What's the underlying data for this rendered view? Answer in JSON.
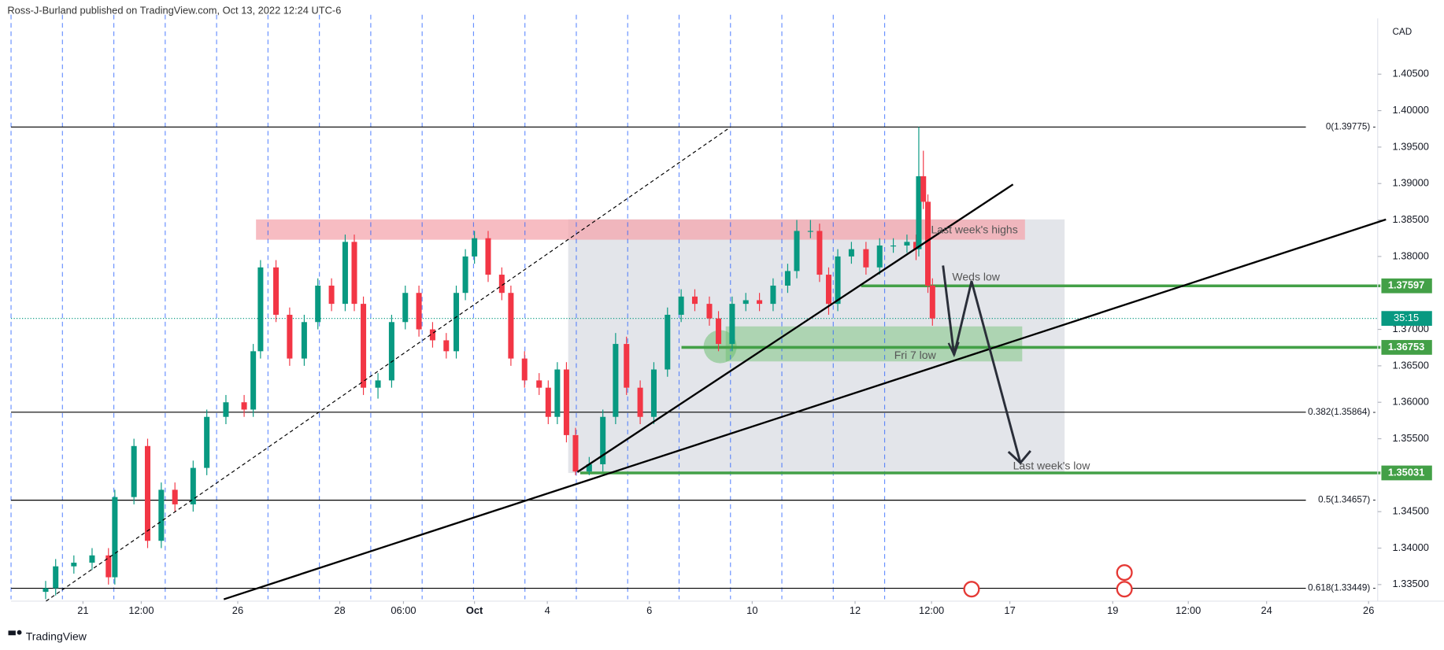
{
  "header": "Ross-J-Burland published on TradingView.com, Oct 13, 2022 12:24 UTC-6",
  "footer": "TradingView",
  "chart_data": {
    "type": "candlestick",
    "currency": "CAD",
    "up_color": "#089981",
    "down_color": "#f23645",
    "grid": false,
    "xlim": [
      0,
      150
    ],
    "ylim": [
      1.33298,
      1.41239
    ],
    "xticks": [
      {
        "value": 7.9,
        "label": "21"
      },
      {
        "value": 14.3,
        "label": "12:00"
      },
      {
        "value": 24.9,
        "label": "26"
      },
      {
        "value": 36.1,
        "label": "28"
      },
      {
        "value": 43.1,
        "label": "06:00"
      },
      {
        "value": 50.9,
        "label": "Oct"
      },
      {
        "value": 58.9,
        "label": "4"
      },
      {
        "value": 70.1,
        "label": "6"
      },
      {
        "value": 81.4,
        "label": "10"
      },
      {
        "value": 92.7,
        "label": "12"
      },
      {
        "value": 101.1,
        "label": "12:00"
      },
      {
        "value": 109.7,
        "label": "17"
      },
      {
        "value": 121.0,
        "label": "19"
      },
      {
        "value": 129.3,
        "label": "12:00"
      },
      {
        "value": 137.9,
        "label": "24"
      },
      {
        "value": 149.1,
        "label": "26"
      }
    ],
    "yticks": [
      {
        "value": 1.405,
        "label": "1.40500"
      },
      {
        "value": 1.4,
        "label": "1.40000"
      },
      {
        "value": 1.395,
        "label": "1.39500"
      },
      {
        "value": 1.39,
        "label": "1.39000"
      },
      {
        "value": 1.385,
        "label": "1.38500"
      },
      {
        "value": 1.38,
        "label": "1.38000"
      },
      {
        "value": 1.37,
        "label": "1.37000"
      },
      {
        "value": 1.365,
        "label": "1.36500"
      },
      {
        "value": 1.36,
        "label": "1.36000"
      },
      {
        "value": 1.355,
        "label": "1.35500"
      },
      {
        "value": 1.345,
        "label": "1.34500"
      },
      {
        "value": 1.34,
        "label": "1.34000"
      },
      {
        "value": 1.335,
        "label": "1.33500"
      }
    ],
    "x": [
      3.8,
      4.9,
      6.9,
      8.9,
      10.7,
      11.4,
      13.5,
      15.0,
      16.5,
      18.0,
      20.0,
      21.5,
      23.6,
      25.6,
      26.6,
      27.4,
      29.1,
      30.6,
      32.2,
      33.7,
      35.2,
      36.7,
      37.7,
      38.7,
      40.3,
      41.8,
      43.3,
      44.8,
      46.3,
      47.8,
      48.9,
      49.9,
      50.9,
      52.4,
      53.9,
      54.9,
      56.4,
      58.0,
      59.0,
      60.0,
      61.0,
      62.0,
      63.5,
      65.0,
      66.4,
      67.6,
      69.1,
      70.6,
      72.1,
      73.6,
      75.1,
      76.7,
      77.7,
      79.2,
      80.7,
      82.2,
      83.7,
      85.3,
      86.3,
      87.8,
      88.8,
      89.8,
      90.8,
      92.3,
      93.9,
      95.4,
      96.9,
      98.4,
      99.4,
      99.7,
      100.2,
      100.7,
      101.2
    ],
    "open": [
      1.334,
      1.3345,
      1.3375,
      1.338,
      1.339,
      1.336,
      1.347,
      1.354,
      1.341,
      1.348,
      1.346,
      1.351,
      1.358,
      1.36,
      1.359,
      1.367,
      1.3785,
      1.372,
      1.366,
      1.371,
      1.376,
      1.3735,
      1.382,
      1.3735,
      1.362,
      1.363,
      1.371,
      1.375,
      1.37,
      1.3685,
      1.367,
      1.375,
      1.38,
      1.3825,
      1.3775,
      1.375,
      1.366,
      1.363,
      1.362,
      1.358,
      1.3645,
      1.3555,
      1.3505,
      1.3515,
      1.358,
      1.368,
      1.362,
      1.358,
      1.3645,
      1.372,
      1.3745,
      1.3735,
      1.3715,
      1.368,
      1.3735,
      1.374,
      1.3735,
      1.376,
      1.378,
      1.3835,
      1.3835,
      1.3775,
      1.3735,
      1.38,
      1.381,
      1.3785,
      1.3815,
      1.3815,
      1.382,
      1.381,
      1.391,
      1.3875,
      1.376
    ],
    "high": [
      1.3355,
      1.3385,
      1.339,
      1.34,
      1.34,
      1.348,
      1.355,
      1.355,
      1.349,
      1.349,
      1.352,
      1.359,
      1.361,
      1.361,
      1.368,
      1.3795,
      1.3795,
      1.373,
      1.372,
      1.377,
      1.377,
      1.383,
      1.383,
      1.3745,
      1.364,
      1.372,
      1.376,
      1.376,
      1.371,
      1.3695,
      1.376,
      1.381,
      1.3835,
      1.3835,
      1.3785,
      1.376,
      1.367,
      1.364,
      1.363,
      1.3655,
      1.3655,
      1.3565,
      1.3525,
      1.359,
      1.3695,
      1.369,
      1.363,
      1.3655,
      1.373,
      1.3755,
      1.3755,
      1.3745,
      1.3725,
      1.3745,
      1.375,
      1.375,
      1.377,
      1.379,
      1.385,
      1.385,
      1.3845,
      1.3785,
      1.381,
      1.382,
      1.382,
      1.3825,
      1.3825,
      1.383,
      1.383,
      1.39775,
      1.3945,
      1.3885,
      1.377
    ],
    "low": [
      1.333,
      1.3335,
      1.3365,
      1.337,
      1.335,
      1.335,
      1.346,
      1.34,
      1.34,
      1.345,
      1.345,
      1.35,
      1.357,
      1.358,
      1.358,
      1.366,
      1.371,
      1.365,
      1.365,
      1.37,
      1.3725,
      1.3725,
      1.3725,
      1.361,
      1.3605,
      1.362,
      1.37,
      1.369,
      1.3675,
      1.366,
      1.366,
      1.374,
      1.379,
      1.3765,
      1.374,
      1.365,
      1.362,
      1.361,
      1.357,
      1.357,
      1.3545,
      1.35,
      1.35,
      1.3505,
      1.357,
      1.361,
      1.357,
      1.357,
      1.3635,
      1.371,
      1.3725,
      1.3705,
      1.367,
      1.367,
      1.3725,
      1.3725,
      1.3725,
      1.375,
      1.377,
      1.3825,
      1.3765,
      1.372,
      1.3725,
      1.379,
      1.3775,
      1.3775,
      1.3805,
      1.3805,
      1.3795,
      1.38,
      1.3865,
      1.375,
      1.3705
    ],
    "close": [
      1.3345,
      1.3375,
      1.338,
      1.339,
      1.336,
      1.347,
      1.354,
      1.341,
      1.348,
      1.346,
      1.351,
      1.358,
      1.36,
      1.359,
      1.367,
      1.3785,
      1.372,
      1.366,
      1.371,
      1.376,
      1.3735,
      1.382,
      1.3735,
      1.362,
      1.363,
      1.371,
      1.375,
      1.37,
      1.3685,
      1.367,
      1.375,
      1.38,
      1.3825,
      1.3775,
      1.375,
      1.366,
      1.363,
      1.362,
      1.358,
      1.3645,
      1.3555,
      1.3505,
      1.3515,
      1.358,
      1.368,
      1.362,
      1.358,
      1.3645,
      1.372,
      1.3745,
      1.3735,
      1.3715,
      1.368,
      1.3735,
      1.374,
      1.3735,
      1.376,
      1.378,
      1.3835,
      1.3835,
      1.3775,
      1.3735,
      1.38,
      1.381,
      1.3785,
      1.3815,
      1.3815,
      1.382,
      1.381,
      1.391,
      1.3875,
      1.376,
      1.3715
    ],
    "fib_levels": [
      {
        "value": 1.39775,
        "label": "0(1.39775) -"
      },
      {
        "value": 1.35864,
        "label": "0.382(1.35864) -"
      },
      {
        "value": 1.34657,
        "label": "0.5(1.34657) -"
      },
      {
        "value": 1.33449,
        "label": "0.618(1.33449) -"
      }
    ],
    "support_levels": [
      {
        "value": 1.37597,
        "label": "1.37597"
      },
      {
        "value": 1.36753,
        "label": "1.36753"
      },
      {
        "value": 1.35031,
        "label": "1.35031"
      }
    ],
    "support_color": "#43a047",
    "countdown": "35:15",
    "annotations": [
      "Last week's highs",
      "Weds low",
      "Fri 7 low",
      "Last week's low"
    ]
  }
}
